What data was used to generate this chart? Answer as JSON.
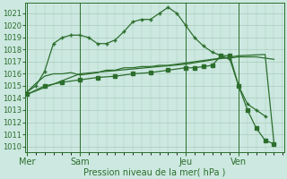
{
  "background_color": "#cce8e0",
  "grid_color": "#aaccbb",
  "line_color": "#2d6e2d",
  "xlabel_label": "Pression niveau de la mer( hPa )",
  "ylim_low": 1009.5,
  "ylim_high": 1021.9,
  "yticks": [
    1010,
    1011,
    1012,
    1013,
    1014,
    1015,
    1016,
    1017,
    1018,
    1019,
    1020,
    1021
  ],
  "day_labels": [
    "Mer",
    "Sam",
    "Jeu",
    "Ven"
  ],
  "day_positions": [
    0,
    6,
    18,
    24
  ],
  "xlim_low": -0.2,
  "xlim_high": 29.2,
  "series1_x": [
    0,
    1,
    2,
    3,
    4,
    5,
    6,
    7,
    8,
    9,
    10,
    11,
    12,
    13,
    14,
    15,
    16,
    17,
    18,
    19,
    20,
    21,
    22,
    23,
    24,
    25,
    26,
    27
  ],
  "series1_y": [
    1014.5,
    1015.0,
    1016.2,
    1018.5,
    1019.0,
    1019.2,
    1019.2,
    1019.0,
    1018.5,
    1018.5,
    1018.8,
    1019.5,
    1020.3,
    1020.5,
    1020.5,
    1021.0,
    1021.5,
    1021.0,
    1020.0,
    1019.0,
    1018.3,
    1017.8,
    1017.5,
    1017.2,
    1015.0,
    1013.5,
    1013.0,
    1012.5
  ],
  "series2_x": [
    0,
    1,
    2,
    3,
    4,
    5,
    6,
    7,
    8,
    9,
    10,
    11,
    12,
    13,
    14,
    15,
    16,
    17,
    18,
    19,
    20,
    21,
    22,
    23,
    24,
    25,
    26,
    27,
    28
  ],
  "series2_y": [
    1014.5,
    1015.2,
    1015.8,
    1016.0,
    1016.0,
    1016.1,
    1015.9,
    1016.0,
    1016.1,
    1016.3,
    1016.3,
    1016.5,
    1016.5,
    1016.6,
    1016.6,
    1016.7,
    1016.7,
    1016.8,
    1016.9,
    1017.0,
    1017.1,
    1017.2,
    1017.3,
    1017.3,
    1017.4,
    1017.4,
    1017.4,
    1017.3,
    1017.2
  ],
  "series3_x": [
    0,
    6,
    12,
    18,
    24,
    27,
    28
  ],
  "series3_y": [
    1014.3,
    1016.0,
    1016.4,
    1016.8,
    1017.5,
    1017.6,
    1010.3
  ],
  "series4_x": [
    0,
    2,
    4,
    6,
    8,
    10,
    12,
    14,
    16,
    18,
    19,
    20,
    21,
    22,
    23,
    24,
    25,
    26,
    27,
    28
  ],
  "series4_y": [
    1014.3,
    1015.0,
    1015.3,
    1015.5,
    1015.7,
    1015.8,
    1016.0,
    1016.1,
    1016.3,
    1016.5,
    1016.5,
    1016.6,
    1016.7,
    1017.5,
    1017.5,
    1015.0,
    1013.0,
    1011.5,
    1010.5,
    1010.2
  ]
}
